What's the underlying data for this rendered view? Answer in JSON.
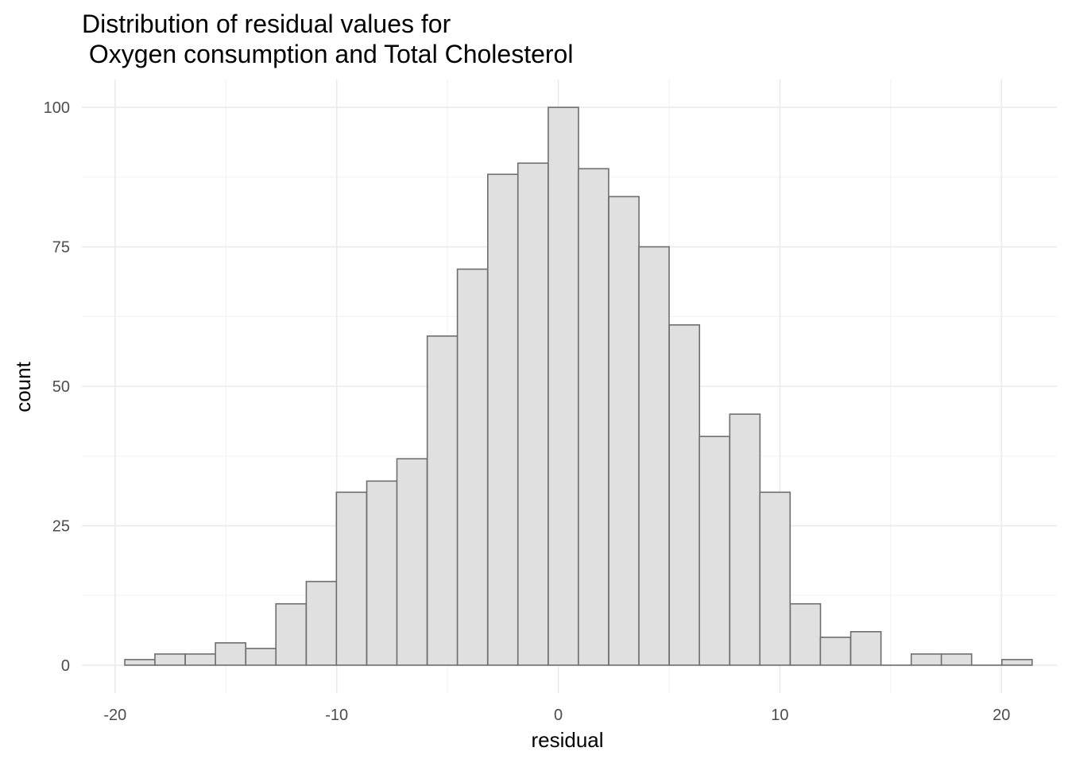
{
  "chart_data": {
    "type": "bar",
    "title_lines": [
      "Distribution of residual values for",
      " Oxygen consumption and Total Cholesterol"
    ],
    "xlabel": "residual",
    "ylabel": "count",
    "xlim": [
      -21.5,
      22.5
    ],
    "ylim": [
      -5,
      105
    ],
    "x_ticks": [
      -20,
      -10,
      0,
      10,
      20
    ],
    "x_tick_labels": [
      "-20",
      "-10",
      "0",
      "10",
      "20"
    ],
    "y_ticks": [
      0,
      25,
      50,
      75,
      100
    ],
    "y_tick_labels": [
      "0",
      "25",
      "50",
      "75",
      "100"
    ],
    "bin_width": 1.365,
    "bins": [
      {
        "center": -18.88,
        "count": 1
      },
      {
        "center": -17.52,
        "count": 2
      },
      {
        "center": -16.15,
        "count": 2
      },
      {
        "center": -14.79,
        "count": 4
      },
      {
        "center": -13.42,
        "count": 3
      },
      {
        "center": -12.06,
        "count": 11
      },
      {
        "center": -10.69,
        "count": 15
      },
      {
        "center": -9.33,
        "count": 31
      },
      {
        "center": -7.96,
        "count": 33
      },
      {
        "center": -6.6,
        "count": 37
      },
      {
        "center": -5.23,
        "count": 59
      },
      {
        "center": -3.87,
        "count": 71
      },
      {
        "center": -2.5,
        "count": 88
      },
      {
        "center": -1.14,
        "count": 90
      },
      {
        "center": 0.23,
        "count": 100
      },
      {
        "center": 1.59,
        "count": 89
      },
      {
        "center": 2.96,
        "count": 84
      },
      {
        "center": 4.32,
        "count": 75
      },
      {
        "center": 5.69,
        "count": 61
      },
      {
        "center": 7.05,
        "count": 41
      },
      {
        "center": 8.42,
        "count": 45
      },
      {
        "center": 9.78,
        "count": 31
      },
      {
        "center": 11.15,
        "count": 11
      },
      {
        "center": 12.51,
        "count": 5
      },
      {
        "center": 13.88,
        "count": 6
      },
      {
        "center": 15.24,
        "count": 0
      },
      {
        "center": 16.61,
        "count": 2
      },
      {
        "center": 17.97,
        "count": 2
      },
      {
        "center": 19.34,
        "count": 0
      },
      {
        "center": 20.7,
        "count": 1
      }
    ],
    "grid": true,
    "bar_fill": "#e0e0e0",
    "bar_stroke": "#6e6e6e",
    "grid_major_color": "#ebebeb",
    "grid_minor_color": "#f2f2f2"
  }
}
